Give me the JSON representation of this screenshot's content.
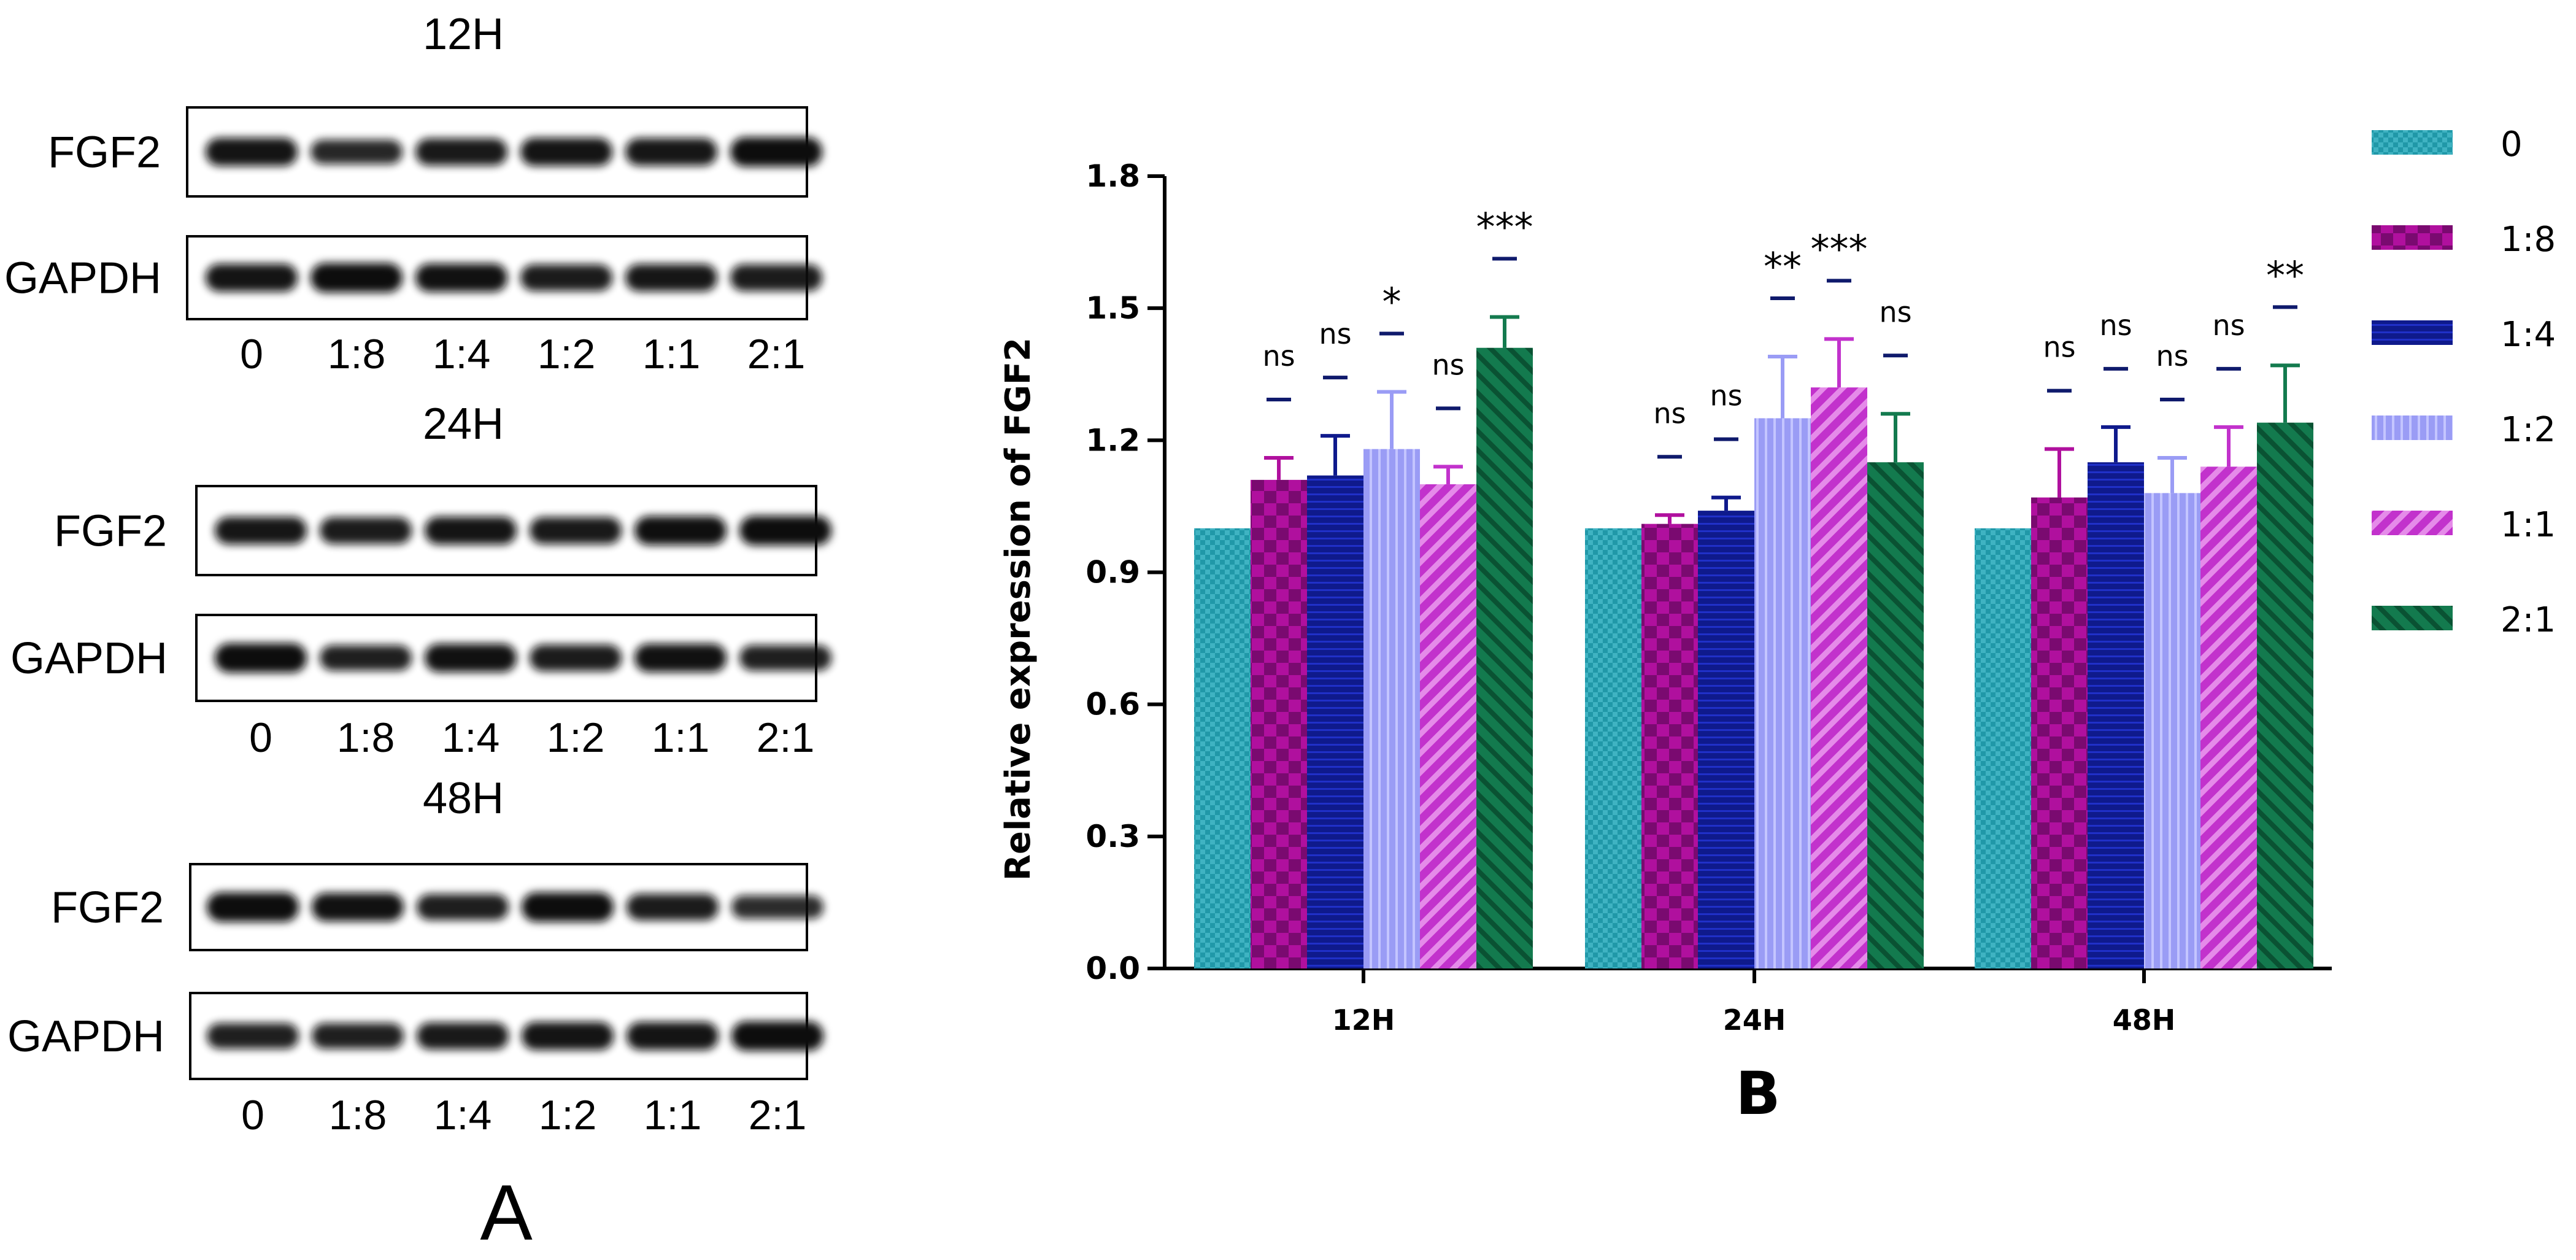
{
  "panel_a": {
    "label": "A",
    "blots": [
      {
        "time": "12H",
        "rows": [
          {
            "name": "FGF2",
            "band_rel": [
              0.9,
              0.62,
              0.82,
              0.9,
              0.85,
              1.0
            ]
          },
          {
            "name": "GAPDH",
            "band_rel": [
              0.88,
              1.0,
              0.92,
              0.78,
              0.84,
              0.8
            ]
          }
        ],
        "lanes": [
          "0",
          "1:8",
          "1:4",
          "1:2",
          "1:1",
          "2:1"
        ]
      },
      {
        "time": "24H",
        "rows": [
          {
            "name": "FGF2",
            "band_rel": [
              0.85,
              0.8,
              0.88,
              0.82,
              0.95,
              1.0
            ]
          },
          {
            "name": "GAPDH",
            "band_rel": [
              1.0,
              0.7,
              0.92,
              0.78,
              0.92,
              0.7
            ]
          }
        ],
        "lanes": [
          "0",
          "1:8",
          "1:4",
          "1:2",
          "1:1",
          "2:1"
        ]
      },
      {
        "time": "48H",
        "rows": [
          {
            "name": "FGF2",
            "band_rel": [
              1.0,
              0.92,
              0.75,
              1.0,
              0.78,
              0.55
            ]
          },
          {
            "name": "GAPDH",
            "band_rel": [
              0.72,
              0.72,
              0.82,
              0.9,
              0.9,
              1.0
            ]
          }
        ],
        "lanes": [
          "0",
          "1:8",
          "1:4",
          "1:2",
          "1:1",
          "2:1"
        ]
      }
    ]
  },
  "panel_b": {
    "label": "B"
  },
  "chart_data": {
    "type": "bar",
    "categories": [
      "12H",
      "24H",
      "48H"
    ],
    "ylabel": "Relative expression of FGF2",
    "xlabel": "",
    "ylim": [
      0,
      1.8
    ],
    "yticks": [
      "0.0",
      "0.3",
      "0.6",
      "0.9",
      "1.2",
      "1.5",
      "1.8"
    ],
    "legend_position": "right",
    "series": [
      {
        "name": "0",
        "color": "#2098A8",
        "pattern": "checker-small",
        "values": [
          1.0,
          1.0,
          1.0
        ],
        "errors": [
          0,
          0,
          0
        ],
        "sig": [
          "",
          "",
          ""
        ]
      },
      {
        "name": "1:8",
        "color": "#B0109E",
        "pattern": "checker-large",
        "values": [
          1.11,
          1.01,
          1.07
        ],
        "errors": [
          0.05,
          0.02,
          0.11
        ],
        "sig": [
          "ns",
          "ns",
          "ns"
        ]
      },
      {
        "name": "1:4",
        "color": "#0F1A8C",
        "pattern": "horizontal-lines",
        "values": [
          1.12,
          1.04,
          1.15
        ],
        "errors": [
          0.09,
          0.03,
          0.08
        ],
        "sig": [
          "ns",
          "ns",
          "ns"
        ]
      },
      {
        "name": "1:2",
        "color": "#9A9CF5",
        "pattern": "vertical-lines",
        "values": [
          1.18,
          1.25,
          1.08
        ],
        "errors": [
          0.13,
          0.14,
          0.08
        ],
        "sig": [
          "*",
          "**",
          "ns"
        ]
      },
      {
        "name": "1:1",
        "color": "#C232CC",
        "pattern": "diagonal-up",
        "values": [
          1.1,
          1.32,
          1.14
        ],
        "errors": [
          0.04,
          0.11,
          0.09
        ],
        "sig": [
          "ns",
          "***",
          "ns"
        ]
      },
      {
        "name": "2:1",
        "color": "#137A4E",
        "pattern": "diagonal-down",
        "values": [
          1.41,
          1.15,
          1.24
        ],
        "errors": [
          0.07,
          0.11,
          0.13
        ],
        "sig": [
          "***",
          "ns",
          "**"
        ]
      }
    ]
  }
}
